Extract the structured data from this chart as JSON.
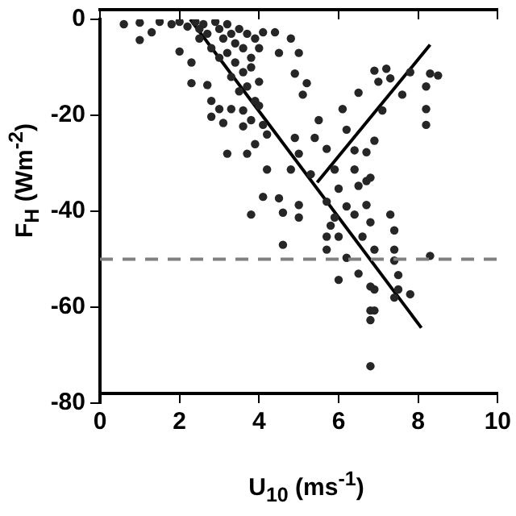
{
  "chart_data": {
    "type": "scatter",
    "xlabel": "U$_{10}$ (ms$^{-1}$)",
    "ylabel": "F$_{H}$ (Wm$^{-2}$)",
    "xlim": [
      0,
      10
    ],
    "ylim": [
      -80,
      0
    ],
    "xticks": [
      0,
      2,
      4,
      6,
      8,
      10
    ],
    "yticks": [
      -80,
      -60,
      -40,
      -20,
      0
    ],
    "grid": false,
    "legend": false,
    "series": [
      {
        "marker": "circle",
        "color": "#262626",
        "x": [
          0.6,
          1.0,
          1.0,
          1.3,
          2.0,
          2.3,
          2.3,
          2.7,
          2.8,
          2.8,
          3.1,
          3.2,
          3.0,
          3.3,
          3.6,
          3.7,
          1.5,
          1.8,
          2.0,
          2.2,
          2.4,
          2.5,
          2.6,
          2.7,
          2.9,
          3.0,
          3.1,
          3.2,
          3.3,
          3.4,
          3.5,
          3.6,
          3.7,
          3.8,
          3.9,
          4.0,
          2.5,
          2.8,
          3.0,
          3.2,
          3.4,
          3.6,
          3.8,
          4.0,
          3.3,
          3.5,
          3.7,
          3.9,
          3.6,
          3.8,
          4.0,
          4.2,
          3.9,
          4.1,
          4.1,
          4.4,
          4.8,
          5.0,
          4.5,
          4.9,
          5.2,
          5.1,
          6.1,
          5.5,
          6.9,
          7.2,
          7.3,
          7.0,
          6.5,
          7.8,
          8.2,
          8.3,
          8.5,
          8.2,
          8.2,
          7.6,
          7.1,
          6.2,
          6.9,
          6.4,
          6.7,
          5.4,
          5.7,
          4.9,
          5.0,
          4.2,
          4.8,
          5.3,
          5.9,
          6.4,
          6.8,
          6.0,
          6.5,
          6.7,
          4.1,
          4.5,
          5.0,
          5.7,
          6.2,
          6.7,
          3.8,
          4.6,
          5.0,
          5.9,
          6.4,
          6.8,
          7.3,
          5.8,
          5.7,
          6.0,
          6.6,
          7.4,
          4.6,
          5.7,
          6.2,
          6.9,
          7.4,
          8.3,
          7.4,
          6.5,
          6.0,
          7.5,
          6.8,
          6.9,
          7.5,
          7.8,
          6.8,
          6.9,
          6.8,
          6.8,
          7.4
        ],
        "values": [
          -1,
          -0.7,
          -4.3,
          -2.7,
          -6.7,
          -9,
          -13.3,
          -13.7,
          -17,
          -20.3,
          -21.6,
          -28,
          -18.7,
          -18.7,
          -22.3,
          -28,
          -0.5,
          -1,
          -0.5,
          -1.5,
          -0.5,
          -2,
          -1,
          -3,
          -0.5,
          -2,
          -4,
          -1,
          -3,
          -5,
          -2,
          -6,
          -3,
          -8,
          -4,
          -6,
          -4,
          -6,
          -8,
          -7,
          -9,
          -11,
          -10,
          -13,
          -12,
          -15,
          -14,
          -17,
          -19,
          -21,
          -18,
          -24,
          -26,
          -22,
          -2.7,
          -2.7,
          -4,
          -7,
          -7,
          -11.3,
          -13.3,
          -15.7,
          -18.7,
          -21,
          -10.7,
          -10.3,
          -12.3,
          -13,
          -15.3,
          -11,
          -14,
          -11.3,
          -11.7,
          -18.7,
          -22,
          -15.7,
          -19,
          -23,
          -25.3,
          -27.3,
          -27.7,
          -24.7,
          -27,
          -24.7,
          -28,
          -31.3,
          -31.3,
          -32.3,
          -31.3,
          -31.3,
          -33,
          -35.3,
          -34.7,
          -33.7,
          -37,
          -37.3,
          -38.7,
          -38,
          -39,
          -38.7,
          -40.7,
          -40.3,
          -41.3,
          -41.3,
          -40.7,
          -42.3,
          -40.7,
          -43,
          -45.3,
          -45.3,
          -45.3,
          -44,
          -47,
          -48,
          -49.7,
          -48,
          -48,
          -49.3,
          -50.3,
          -53,
          -54.3,
          -53.3,
          -55.7,
          -56.3,
          -56.3,
          -57.3,
          -60.7,
          -60.7,
          -62.7,
          -72.3,
          -58
        ]
      },
      {
        "type": "line",
        "marker": "none",
        "color": "#000000",
        "x": [
          2.27,
          8.08
        ],
        "values": [
          0,
          -64.3
        ]
      },
      {
        "type": "line",
        "marker": "none",
        "color": "#000000",
        "x": [
          5.46,
          8.3
        ],
        "values": [
          -34,
          -5.3
        ]
      }
    ],
    "ref_lines": [
      {
        "axis": "y",
        "value": -50,
        "color": "#808080",
        "line_style": "dashed"
      }
    ]
  }
}
